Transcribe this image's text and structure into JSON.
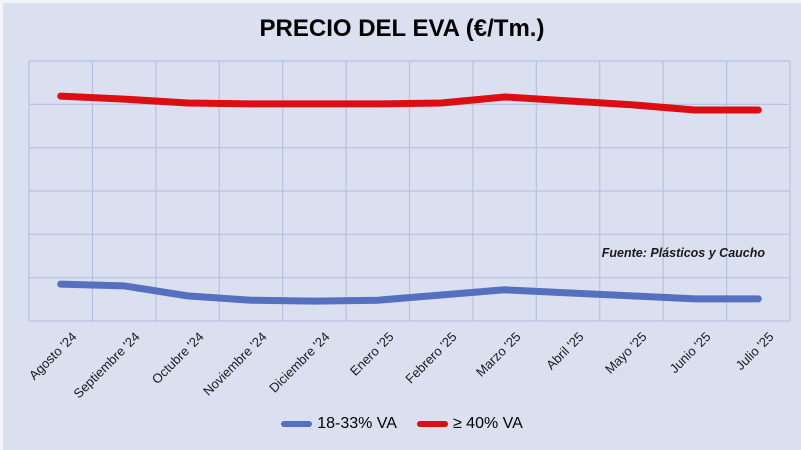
{
  "chart_data": {
    "type": "line",
    "title": "PRECIO DEL EVA (€/Tm.)",
    "source_note": "Fuente: Plásticos y Caucho",
    "categories": [
      "Agosto '24",
      "Septiembre '24",
      "Octubre '24",
      "Noviembre '24",
      "Diciembre '24",
      "Enero '25",
      "Febrero '25",
      "Marzo '25",
      "Abril '25",
      "Mayo '25",
      "Junio '25",
      "Julio '25"
    ],
    "series": [
      {
        "name": "18-33% VA",
        "color": "#5470bf",
        "values": [
          0.85,
          0.81,
          0.58,
          0.48,
          0.46,
          0.48,
          0.6,
          0.72,
          0.65,
          0.58,
          0.51,
          0.51
        ]
      },
      {
        "name": "≥ 40% VA",
        "color": "#dd0e12",
        "values": [
          5.19,
          5.12,
          5.03,
          5.01,
          5.01,
          5.01,
          5.03,
          5.17,
          5.08,
          4.99,
          4.87,
          4.87
        ]
      }
    ],
    "value_units": "relative grid units; no numeric y-axis labels are visible in the chart (0 = bottom gridline, 6 = top gridline)",
    "xlabel": "",
    "ylabel": "",
    "ylim": [
      0,
      6
    ],
    "grid": true,
    "legend_position": "bottom",
    "colors": {
      "background": "#dbe0f0",
      "gridline": "#b6c1e2",
      "title": "#000000",
      "text": "#1a1a1a"
    }
  }
}
